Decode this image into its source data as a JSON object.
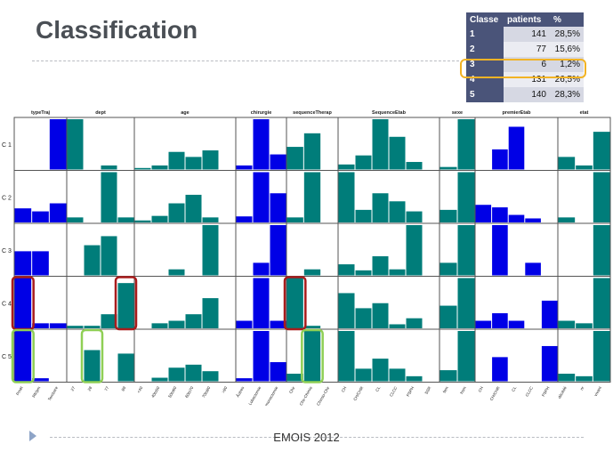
{
  "slide": {
    "title": "Classification",
    "footer": "EMOIS 2012"
  },
  "stats_table": {
    "headers": [
      "Classe",
      "patients",
      "%"
    ],
    "rows": [
      {
        "classe": "1",
        "patients": "141",
        "pct": "28,5%"
      },
      {
        "classe": "2",
        "patients": "77",
        "pct": "15,6%"
      },
      {
        "classe": "3",
        "patients": "6",
        "pct": "1,2%"
      },
      {
        "classe": "4",
        "patients": "131",
        "pct": "26,5%"
      },
      {
        "classe": "5",
        "patients": "140",
        "pct": "28,3%"
      }
    ],
    "highlighted_row": "3",
    "highlight_color": "#f2b325"
  },
  "colors": {
    "blue": "#0000e6",
    "teal": "#007d7a",
    "red_box": "#a81c1c",
    "green_box": "#8fcf55"
  },
  "chart_data": {
    "type": "bar",
    "row_labels": [
      "C 1",
      "C 2",
      "C 3",
      "C 4",
      "C 5"
    ],
    "variables": [
      {
        "name": "typeTraj",
        "categories": [
          "Pmét",
          "Rfr/pm",
          "Territoire"
        ],
        "color": "blue",
        "values": [
          [
            0,
            0,
            100
          ],
          [
            28,
            22,
            38
          ],
          [
            48,
            48,
            0
          ],
          [
            100,
            10,
            10
          ],
          [
            100,
            6,
            0
          ]
        ]
      },
      {
        "name": "dept",
        "categories": [
          "27",
          "28",
          "77",
          "89"
        ],
        "color": "teal",
        "values": [
          [
            100,
            0,
            8,
            0
          ],
          [
            10,
            0,
            100,
            10
          ],
          [
            0,
            60,
            78,
            0
          ],
          [
            5,
            5,
            28,
            90
          ],
          [
            0,
            62,
            0,
            55
          ]
        ]
      },
      {
        "name": "age",
        "categories": [
          "<40",
          "40to50",
          "50to60",
          "60to70",
          "70to80",
          ">80"
        ],
        "color": "teal",
        "values": [
          [
            3,
            8,
            35,
            25,
            38,
            0
          ],
          [
            4,
            13,
            38,
            55,
            10,
            0
          ],
          [
            0,
            0,
            12,
            0,
            100,
            0
          ],
          [
            0,
            10,
            15,
            28,
            60,
            0
          ],
          [
            0,
            7,
            27,
            33,
            20,
            0
          ]
        ]
      },
      {
        "name": "chirurgie",
        "categories": [
          "Âutres",
          "Lobectomie",
          "Pneumonectomie"
        ],
        "color": "blue",
        "values": [
          [
            8,
            100,
            30
          ],
          [
            12,
            100,
            58
          ],
          [
            0,
            25,
            100
          ],
          [
            15,
            100,
            15
          ],
          [
            6,
            100,
            38
          ]
        ]
      },
      {
        "name": "sequenceTherap",
        "categories": [
          "Chir",
          "Chir-Chimio",
          "Chir-Chimio-Chir"
        ],
        "color": "teal",
        "values": [
          [
            45,
            72,
            0
          ],
          [
            10,
            100,
            0
          ],
          [
            0,
            12,
            0
          ],
          [
            100,
            5,
            0
          ],
          [
            15,
            100,
            0
          ]
        ]
      },
      {
        "name": "SequenceEtab",
        "categories": [
          "CH",
          "CH/CHR",
          "CL",
          "CLCC",
          "PSPH",
          "SSR"
        ],
        "color": "teal",
        "values": [
          [
            10,
            28,
            100,
            65,
            15,
            0
          ],
          [
            100,
            25,
            58,
            42,
            22,
            0
          ],
          [
            22,
            10,
            38,
            12,
            100,
            0
          ],
          [
            70,
            40,
            50,
            8,
            20,
            0
          ],
          [
            100,
            25,
            45,
            25,
            10,
            0
          ]
        ]
      },
      {
        "name": "sexe",
        "categories": [
          "fem",
          "hom"
        ],
        "color": "teal",
        "values": [
          [
            5,
            100
          ],
          [
            25,
            100
          ],
          [
            25,
            100
          ],
          [
            45,
            100
          ],
          [
            22,
            100
          ]
        ]
      },
      {
        "name": "premierEtab",
        "categories": [
          "CH",
          "CH/CHR",
          "CL",
          "CLCC",
          "PSPH"
        ],
        "color": "blue",
        "values": [
          [
            0,
            40,
            85,
            0,
            0
          ],
          [
            35,
            30,
            15,
            8,
            0
          ],
          [
            0,
            100,
            0,
            25,
            0
          ],
          [
            15,
            30,
            15,
            0,
            55
          ],
          [
            0,
            48,
            0,
            0,
            70
          ]
        ]
      },
      {
        "name": "etat",
        "categories": [
          "décédé",
          "nr",
          "vivant"
        ],
        "color": "teal",
        "values": [
          [
            25,
            8,
            75
          ],
          [
            10,
            0,
            100
          ],
          [
            0,
            0,
            100
          ],
          [
            15,
            10,
            100
          ],
          [
            15,
            10,
            100
          ]
        ]
      }
    ],
    "annotations": [
      {
        "variable": "typeTraj",
        "row": "C 4",
        "category": "Pmét",
        "style": "red"
      },
      {
        "variable": "dept",
        "row": "C 4",
        "category": "89",
        "style": "red"
      },
      {
        "variable": "sequenceTherap",
        "row": "C 4",
        "category": "Chir",
        "style": "red"
      },
      {
        "variable": "typeTraj",
        "row": "C 5",
        "category": "Pmét",
        "style": "green"
      },
      {
        "variable": "dept",
        "row": "C 5",
        "category": "28",
        "style": "green"
      },
      {
        "variable": "sequenceTherap",
        "row": "C 5",
        "category": "Chir-Chimio",
        "style": "green"
      }
    ],
    "grid": true,
    "legend": "none"
  }
}
